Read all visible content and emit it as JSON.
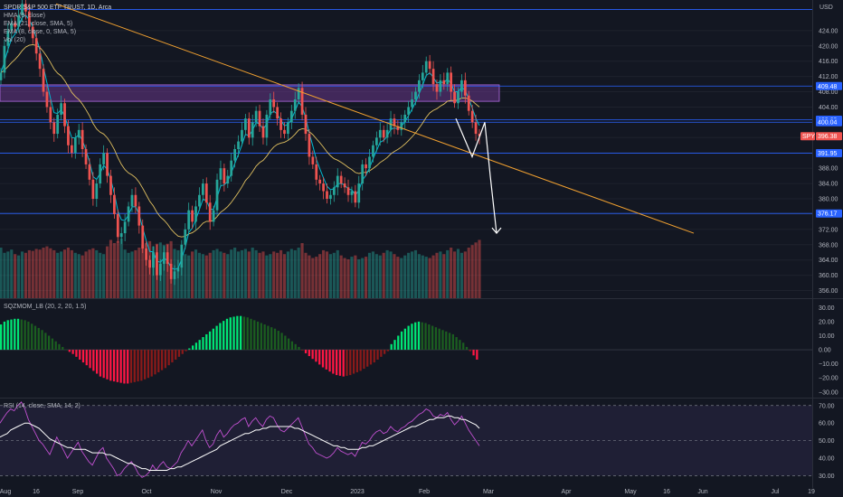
{
  "header": {
    "symbol_title": "SPDR S&P 500 ETF TRUST, 1D, Arca",
    "indicators": [
      "HMA (9, close)",
      "EMA (21, close, SMA, 5)",
      "EMA (8, close, 0, SMA, 5)",
      "Vol (20)"
    ],
    "currency": "USD"
  },
  "colors": {
    "background": "#131722",
    "up": "#26a69a",
    "down": "#ef5350",
    "hma": "#00bcd4",
    "ema21": "#e0c060",
    "ema8": "#ffffff",
    "trendline": "#f0a030",
    "zone": "#7b3fa0",
    "level_line": "#2962ff",
    "mom_up_strong": "#00e676",
    "mom_up_weak": "#1b5e20",
    "mom_down_strong": "#ff1744",
    "mom_down_weak": "#8b1a1a",
    "rsi_line": "#c050d0",
    "rsi_ma": "#ffffff"
  },
  "chart_data": [
    {
      "type": "candlestick",
      "title": "SPDR S&P 500 ETF TRUST, 1D, Arca",
      "ylim": [
        354,
        432
      ],
      "y_ticks": [
        356,
        360,
        364,
        368,
        372,
        376,
        380,
        384,
        388,
        392,
        396,
        400,
        404,
        408,
        412,
        416,
        420,
        424
      ],
      "y_tick_labels": [
        "356.00",
        "360.00",
        "364.00",
        "368.00",
        "372.00",
        "376.00",
        "380.00",
        "384.00",
        "388.00",
        "392.00",
        "396.00",
        "400.00",
        "404.00",
        "408.00",
        "412.00",
        "416.00",
        "420.00",
        "424.00"
      ],
      "x_tick_labels": [
        "Aug",
        "16",
        "Sep",
        "Oct",
        "Nov",
        "Dec",
        "2023",
        "Feb",
        "Mar",
        "Apr",
        "May",
        "16",
        "Jun",
        "Jul",
        "19"
      ],
      "price_tags": [
        {
          "label": "409.48",
          "value": 409.48
        },
        {
          "label": "400.69",
          "value": 400.69
        },
        {
          "label": "400.04",
          "value": 400.04
        },
        {
          "label": "SPY",
          "value": 396.38
        },
        {
          "label": "396.38",
          "value": 396.38
        },
        {
          "label": "391.95",
          "value": 391.95
        },
        {
          "label": "376.17",
          "value": 376.17
        }
      ],
      "horizontal_levels": [
        429.5,
        409.48,
        400.69,
        400.04,
        391.95,
        376.17
      ],
      "resistance_zone": [
        405.5,
        409.8
      ],
      "last_price": 396.38,
      "closes": [
        413,
        420,
        424,
        426,
        425,
        428,
        431,
        429,
        425,
        422,
        418,
        414,
        408,
        404,
        400,
        397,
        402,
        405,
        399,
        394,
        392,
        396,
        398,
        393,
        389,
        385,
        380,
        384,
        389,
        392,
        386,
        381,
        376,
        370,
        371,
        374,
        378,
        381,
        378,
        373,
        367,
        364,
        362,
        366,
        360,
        363,
        366,
        363,
        359,
        361,
        362,
        368,
        372,
        377,
        374,
        378,
        381,
        384,
        379,
        374,
        377,
        385,
        388,
        384,
        386,
        390,
        393,
        395,
        398,
        401,
        396,
        400,
        403,
        399,
        396,
        402,
        406,
        404,
        401,
        398,
        397,
        400,
        403,
        406,
        409,
        402,
        397,
        391,
        389,
        385,
        384,
        382,
        380,
        381,
        383,
        386,
        384,
        383,
        381,
        382,
        379,
        384,
        389,
        388,
        391,
        394,
        396,
        398,
        396,
        398,
        401,
        399,
        398,
        400,
        402,
        404,
        406,
        408,
        411,
        413,
        416,
        414,
        410,
        408,
        411,
        410,
        413,
        408,
        405,
        408,
        411,
        407,
        403,
        400,
        397,
        396.38
      ],
      "volume": [
        78,
        70,
        72,
        75,
        68,
        66,
        72,
        70,
        74,
        73,
        76,
        75,
        78,
        80,
        77,
        74,
        70,
        72,
        75,
        78,
        74,
        70,
        68,
        66,
        72,
        75,
        77,
        74,
        70,
        68,
        80,
        90,
        85,
        88,
        92,
        75,
        70,
        72,
        74,
        78,
        82,
        85,
        88,
        80,
        84,
        86,
        82,
        84,
        88,
        76,
        74,
        70,
        68,
        66,
        72,
        75,
        70,
        68,
        66,
        70,
        74,
        76,
        72,
        70,
        68,
        75,
        78,
        72,
        74,
        76,
        72,
        78,
        74,
        70,
        72,
        66,
        68,
        72,
        70,
        74,
        68,
        72,
        76,
        74,
        78,
        85,
        70,
        66,
        62,
        64,
        68,
        74,
        72,
        68,
        70,
        74,
        66,
        62,
        60,
        64,
        66,
        60,
        62,
        64,
        70,
        72,
        68,
        66,
        70,
        74,
        72,
        68,
        64,
        62,
        66,
        70,
        72,
        74,
        68,
        66,
        64,
        62,
        66,
        70,
        72,
        68,
        74,
        78,
        72,
        76,
        70,
        72,
        78,
        82,
        86,
        90
      ],
      "annotations": [
        {
          "type": "trendline",
          "from": [
            "~Aug 16",
            431
          ],
          "to": [
            "~May 20",
            371
          ]
        },
        {
          "type": "projection",
          "points": [
            [
              401,
              "Feb 16"
            ],
            [
              391,
              "Feb 21"
            ],
            [
              400,
              "Feb 23"
            ],
            [
              386,
              "Feb 27"
            ],
            [
              371,
              "Feb 28"
            ]
          ]
        }
      ]
    },
    {
      "type": "bar",
      "title": "SQZMOM_LB (20, 2, 20, 1.5)",
      "ylim": [
        -34,
        36
      ],
      "y_ticks": [
        30,
        20,
        10,
        0,
        -10,
        -20,
        -30
      ],
      "y_tick_labels": [
        "30.00",
        "20.00",
        "10.00",
        "0.00",
        "−10.00",
        "−20.00",
        "−30.00"
      ],
      "values": [
        18,
        20,
        21,
        21.5,
        22,
        22,
        21.5,
        21,
        20,
        18.5,
        17,
        15.5,
        14,
        12,
        10,
        8,
        6,
        4,
        2,
        0,
        -1.5,
        -3,
        -5,
        -7,
        -9,
        -11,
        -13,
        -15,
        -17,
        -19,
        -20,
        -21,
        -22,
        -22.5,
        -23,
        -23.5,
        -24,
        -24,
        -23.5,
        -23,
        -22.5,
        -22,
        -21,
        -20,
        -19,
        -17.5,
        -16,
        -14.5,
        -13,
        -11,
        -9,
        -7,
        -5,
        -3,
        -1,
        1,
        3,
        5,
        7,
        9,
        11,
        13,
        15,
        17,
        19,
        20.5,
        22,
        23,
        23.5,
        24,
        24,
        23.5,
        23,
        22,
        21,
        20,
        19,
        18,
        17,
        16,
        15,
        13.5,
        12,
        10,
        8,
        6,
        4,
        2,
        -0.5,
        -2.5,
        -4.5,
        -6.5,
        -8.5,
        -10.5,
        -12.5,
        -14,
        -15.5,
        -17,
        -18,
        -18.5,
        -19,
        -18.5,
        -18,
        -17,
        -16,
        -15,
        -13.5,
        -12,
        -10.5,
        -9,
        -7,
        -5,
        -3,
        -1,
        4,
        7,
        10,
        13,
        15,
        17,
        18.5,
        19.5,
        20,
        19.5,
        19,
        18,
        17,
        16,
        15,
        14,
        13,
        12,
        11,
        9,
        7,
        5,
        2,
        -1,
        -4,
        -7
      ]
    },
    {
      "type": "line",
      "title": "RSI (14, close, SMA, 14, 2)",
      "ylim": [
        24,
        74
      ],
      "y_ticks": [
        70,
        60,
        50,
        40,
        30
      ],
      "y_tick_labels": [
        "70.00",
        "60.00",
        "50.00",
        "40.00",
        "30.00"
      ],
      "band": [
        30,
        70
      ],
      "midline": 50,
      "series": [
        {
          "values": [
            60,
            63,
            66,
            68,
            67,
            70,
            72,
            68,
            62,
            58,
            54,
            50,
            48,
            45,
            42,
            47,
            52,
            48,
            44,
            40,
            43,
            46,
            49,
            44,
            41,
            38,
            36,
            40,
            44,
            46,
            40,
            37,
            34,
            30,
            31,
            34,
            36,
            38,
            35,
            31,
            29,
            30,
            32,
            36,
            33,
            36,
            38,
            35,
            34,
            36,
            38,
            43,
            46,
            50,
            47,
            50,
            53,
            56,
            50,
            46,
            48,
            53,
            56,
            52,
            54,
            57,
            59,
            60,
            62,
            63,
            58,
            61,
            63,
            60,
            58,
            62,
            64,
            63,
            59,
            56,
            55,
            57,
            59,
            61,
            63,
            58,
            53,
            48,
            46,
            43,
            42,
            41,
            40,
            41,
            43,
            46,
            44,
            43,
            42,
            43,
            41,
            45,
            49,
            48,
            50,
            53,
            55,
            56,
            54,
            55,
            58,
            56,
            55,
            57,
            58,
            60,
            61,
            63,
            65,
            66,
            68,
            67,
            64,
            63,
            65,
            64,
            66,
            62,
            59,
            61,
            64,
            60,
            56,
            53,
            50,
            47
          ]
        },
        {
          "values": [
            52,
            53,
            54,
            56,
            57,
            58,
            59,
            60,
            60,
            59,
            58,
            57,
            55,
            53,
            51,
            50,
            49,
            48,
            47,
            46,
            46,
            45,
            45,
            45,
            45,
            44,
            43,
            43,
            43,
            43,
            42,
            42,
            41,
            40,
            39,
            38,
            37,
            37,
            36,
            35,
            34,
            34,
            33,
            33,
            33,
            33,
            33,
            33,
            34,
            34,
            35,
            35,
            36,
            37,
            38,
            39,
            40,
            41,
            42,
            43,
            44,
            45,
            47,
            48,
            49,
            50,
            51,
            52,
            53,
            54,
            54,
            55,
            56,
            56,
            57,
            57,
            58,
            58,
            58,
            58,
            58,
            58,
            58,
            57,
            57,
            56,
            55,
            54,
            53,
            52,
            51,
            50,
            49,
            48,
            47,
            47,
            46,
            46,
            45,
            45,
            45,
            45,
            46,
            46,
            47,
            47,
            48,
            49,
            50,
            51,
            52,
            53,
            54,
            55,
            56,
            57,
            58,
            58,
            59,
            60,
            61,
            62,
            62,
            63,
            63,
            63,
            64,
            64,
            63,
            63,
            62,
            62,
            61,
            60,
            59,
            57
          ]
        }
      ]
    }
  ]
}
